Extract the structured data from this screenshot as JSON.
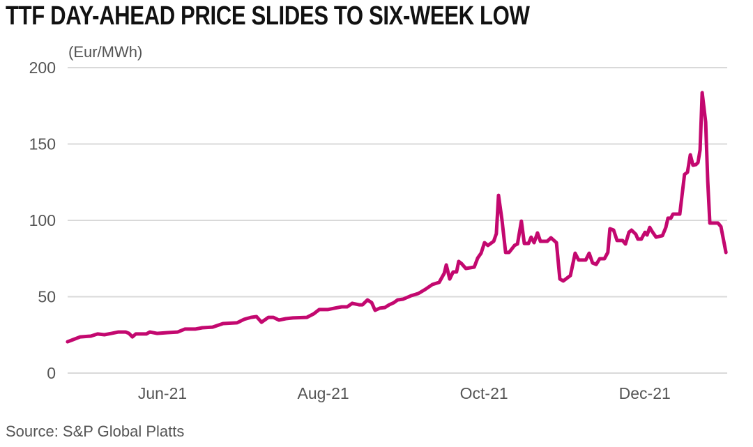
{
  "chart_data": {
    "type": "line",
    "title": "TTF DAY-AHEAD PRICE SLIDES TO SIX-WEEK LOW",
    "ylabel": "(Eur/MWh)",
    "xlabel": "",
    "source": "Source: S&P Global Platts",
    "x_unit": "days since 2021-06-01",
    "ylim": [
      0,
      200
    ],
    "yticks": [
      0,
      50,
      100,
      150,
      200
    ],
    "xticks": [
      {
        "label": "Jun-21",
        "day": 0
      },
      {
        "label": "Aug-21",
        "day": 61
      },
      {
        "label": "Oct-21",
        "day": 122
      },
      {
        "label": "Dec-21",
        "day": 183
      }
    ],
    "grid": true,
    "color": "#c3086f",
    "series": [
      {
        "name": "TTF day-ahead",
        "points": [
          [
            -36,
            20.5
          ],
          [
            -33.9,
            21.9
          ],
          [
            -31.2,
            23.7
          ],
          [
            -27.2,
            24.2
          ],
          [
            -24.6,
            25.6
          ],
          [
            -22,
            25.1
          ],
          [
            -19.3,
            26
          ],
          [
            -16.7,
            26.9
          ],
          [
            -14,
            26.9
          ],
          [
            -12.7,
            26
          ],
          [
            -11.4,
            23.7
          ],
          [
            -10.1,
            25.6
          ],
          [
            -6.1,
            25.6
          ],
          [
            -4.8,
            26.9
          ],
          [
            -2.1,
            26
          ],
          [
            1.9,
            26.5
          ],
          [
            5.8,
            26.9
          ],
          [
            8.5,
            28.8
          ],
          [
            12.4,
            28.8
          ],
          [
            15.1,
            29.7
          ],
          [
            19,
            30.1
          ],
          [
            23,
            32.4
          ],
          [
            28.3,
            32.9
          ],
          [
            31,
            35.2
          ],
          [
            33.6,
            36.5
          ],
          [
            35.7,
            37
          ],
          [
            37.6,
            33.3
          ],
          [
            40.2,
            36.5
          ],
          [
            42.1,
            36.5
          ],
          [
            44.2,
            34.7
          ],
          [
            46.8,
            35.6
          ],
          [
            49.5,
            36.1
          ],
          [
            54.8,
            36.5
          ],
          [
            57.4,
            38.8
          ],
          [
            59.5,
            41.6
          ],
          [
            62.7,
            41.6
          ],
          [
            65.3,
            42.5
          ],
          [
            68,
            43.4
          ],
          [
            70.1,
            43.4
          ],
          [
            72,
            45.7
          ],
          [
            74.6,
            44.7
          ],
          [
            75.9,
            44.7
          ],
          [
            77.8,
            47.9
          ],
          [
            79.4,
            46.1
          ],
          [
            80.7,
            41.1
          ],
          [
            82.5,
            42.5
          ],
          [
            84.4,
            42.9
          ],
          [
            86,
            44.7
          ],
          [
            87.8,
            46.1
          ],
          [
            89.2,
            47.9
          ],
          [
            91.3,
            48.4
          ],
          [
            94.4,
            50.7
          ],
          [
            97.1,
            52.1
          ],
          [
            99.7,
            54.8
          ],
          [
            102.4,
            58
          ],
          [
            105,
            59.4
          ],
          [
            106.9,
            65.3
          ],
          [
            107.7,
            70.8
          ],
          [
            109,
            61.6
          ],
          [
            110.3,
            66.2
          ],
          [
            111.6,
            66.2
          ],
          [
            112.4,
            73.1
          ],
          [
            113.5,
            71.7
          ],
          [
            115.1,
            68.5
          ],
          [
            118.3,
            69.4
          ],
          [
            119.6,
            75.3
          ],
          [
            120.9,
            78.5
          ],
          [
            122.2,
            85.4
          ],
          [
            123.5,
            83.6
          ],
          [
            125.7,
            86.3
          ],
          [
            126.7,
            91.3
          ],
          [
            127.5,
            116.4
          ],
          [
            128.8,
            100.5
          ],
          [
            130.2,
            79
          ],
          [
            131.5,
            79
          ],
          [
            133.6,
            83.6
          ],
          [
            134.7,
            84.5
          ],
          [
            136.2,
            99.5
          ],
          [
            137.3,
            84.9
          ],
          [
            138.9,
            84.9
          ],
          [
            139.9,
            89
          ],
          [
            141,
            85.4
          ],
          [
            142.3,
            91.8
          ],
          [
            143.4,
            86.3
          ],
          [
            146,
            86.3
          ],
          [
            147.4,
            88.6
          ],
          [
            149.5,
            85.4
          ],
          [
            150.8,
            61.6
          ],
          [
            152.1,
            60.3
          ],
          [
            154.8,
            63.9
          ],
          [
            156.6,
            78.5
          ],
          [
            157.9,
            74
          ],
          [
            160.6,
            74
          ],
          [
            161.9,
            78.5
          ],
          [
            163.2,
            72.1
          ],
          [
            164.6,
            71.2
          ],
          [
            165.9,
            74.9
          ],
          [
            167.7,
            74.9
          ],
          [
            169,
            79
          ],
          [
            169.8,
            94.5
          ],
          [
            171.2,
            93.6
          ],
          [
            172.5,
            86.8
          ],
          [
            174.6,
            86.8
          ],
          [
            175.7,
            84.5
          ],
          [
            177,
            92.2
          ],
          [
            178,
            93.6
          ],
          [
            179.6,
            90.9
          ],
          [
            180.4,
            87.7
          ],
          [
            181.7,
            87.7
          ],
          [
            183.1,
            92.2
          ],
          [
            183.9,
            90.4
          ],
          [
            184.9,
            95.4
          ],
          [
            186,
            92.2
          ],
          [
            187.3,
            89
          ],
          [
            189.7,
            90
          ],
          [
            191,
            95.4
          ],
          [
            191.8,
            101.4
          ],
          [
            192.9,
            101.4
          ],
          [
            193.7,
            104.1
          ],
          [
            196.3,
            104.1
          ],
          [
            198.1,
            130.1
          ],
          [
            199.2,
            131.5
          ],
          [
            200.3,
            142.9
          ],
          [
            201.3,
            136.1
          ],
          [
            202.4,
            136.5
          ],
          [
            203.2,
            137.9
          ],
          [
            204,
            146.1
          ],
          [
            204.8,
            183.6
          ],
          [
            206.1,
            164.4
          ],
          [
            206.9,
            125.6
          ],
          [
            207.7,
            98.2
          ],
          [
            210.8,
            98.2
          ],
          [
            211.9,
            95.9
          ],
          [
            213.8,
            79
          ]
        ]
      }
    ]
  }
}
